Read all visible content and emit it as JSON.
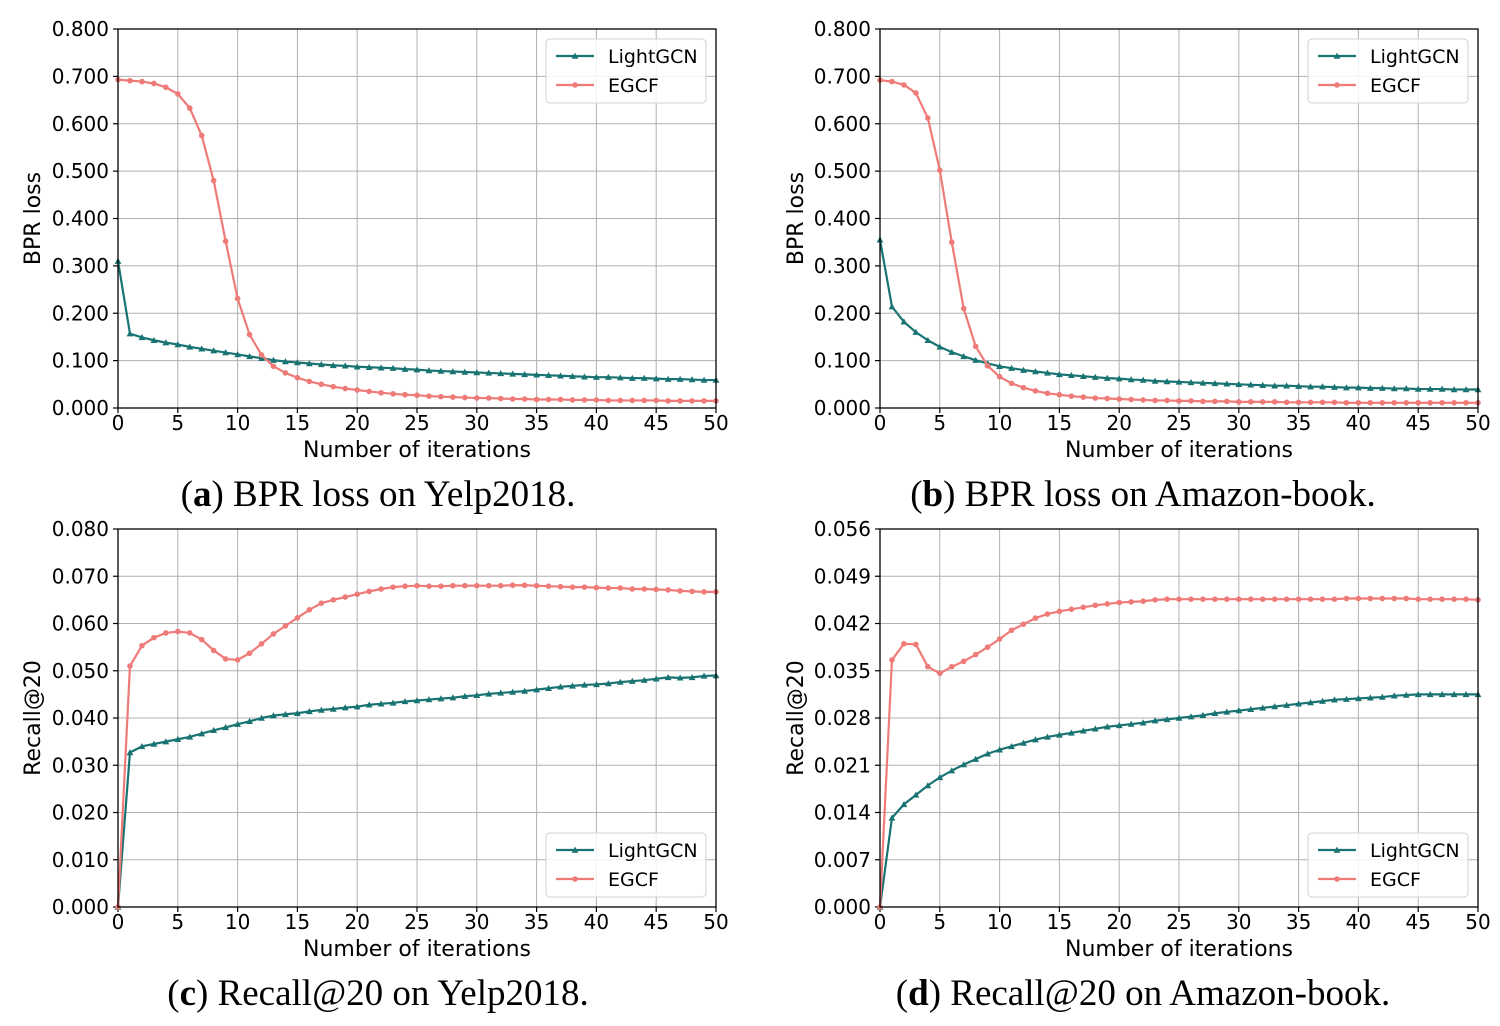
{
  "colors": {
    "lightgcn": "#1a7373",
    "egcf": "#ee7b78",
    "grid": "#b0b0b0",
    "axis": "#000000"
  },
  "chart_data": [
    {
      "type": "line",
      "caption_letter": "a",
      "caption_text": "BPR loss on Yelp2018.",
      "xlabel": "Number of iterations",
      "ylabel": "BPR loss",
      "xlim": [
        0,
        50
      ],
      "ylim": [
        0,
        0.8
      ],
      "xticks": [
        "0",
        "5",
        "10",
        "15",
        "20",
        "25",
        "30",
        "35",
        "40",
        "45",
        "50"
      ],
      "yticks": [
        "0.000",
        "0.100",
        "0.200",
        "0.300",
        "0.400",
        "0.500",
        "0.600",
        "0.700",
        "0.800"
      ],
      "legend_position": "top-right",
      "series": [
        {
          "name": "LightGCN",
          "marker": "triangle",
          "values": [
            0.31,
            0.157,
            0.149,
            0.143,
            0.138,
            0.134,
            0.129,
            0.125,
            0.121,
            0.117,
            0.113,
            0.109,
            0.105,
            0.101,
            0.098,
            0.096,
            0.094,
            0.092,
            0.09,
            0.089,
            0.087,
            0.086,
            0.085,
            0.084,
            0.082,
            0.081,
            0.079,
            0.078,
            0.077,
            0.076,
            0.075,
            0.074,
            0.073,
            0.072,
            0.071,
            0.07,
            0.069,
            0.068,
            0.067,
            0.066,
            0.065,
            0.065,
            0.064,
            0.063,
            0.063,
            0.062,
            0.061,
            0.061,
            0.06,
            0.059,
            0.059
          ]
        },
        {
          "name": "EGCF",
          "marker": "circle",
          "values": [
            0.693,
            0.691,
            0.689,
            0.685,
            0.677,
            0.663,
            0.633,
            0.575,
            0.48,
            0.352,
            0.231,
            0.155,
            0.112,
            0.088,
            0.074,
            0.064,
            0.056,
            0.05,
            0.045,
            0.041,
            0.038,
            0.035,
            0.032,
            0.03,
            0.028,
            0.027,
            0.025,
            0.024,
            0.023,
            0.022,
            0.021,
            0.021,
            0.02,
            0.019,
            0.019,
            0.018,
            0.018,
            0.018,
            0.017,
            0.017,
            0.017,
            0.016,
            0.016,
            0.016,
            0.016,
            0.016,
            0.015,
            0.015,
            0.015,
            0.015,
            0.015
          ]
        }
      ]
    },
    {
      "type": "line",
      "caption_letter": "b",
      "caption_text": "BPR loss on Amazon-book.",
      "xlabel": "Number of iterations",
      "ylabel": "BPR loss",
      "xlim": [
        0,
        50
      ],
      "ylim": [
        0,
        0.8
      ],
      "xticks": [
        "0",
        "5",
        "10",
        "15",
        "20",
        "25",
        "30",
        "35",
        "40",
        "45",
        "50"
      ],
      "yticks": [
        "0.000",
        "0.100",
        "0.200",
        "0.300",
        "0.400",
        "0.500",
        "0.600",
        "0.700",
        "0.800"
      ],
      "legend_position": "top-right",
      "series": [
        {
          "name": "LightGCN",
          "marker": "triangle",
          "values": [
            0.355,
            0.214,
            0.182,
            0.16,
            0.143,
            0.129,
            0.118,
            0.109,
            0.101,
            0.094,
            0.088,
            0.084,
            0.08,
            0.077,
            0.074,
            0.071,
            0.069,
            0.067,
            0.065,
            0.063,
            0.062,
            0.06,
            0.059,
            0.057,
            0.056,
            0.055,
            0.054,
            0.053,
            0.052,
            0.051,
            0.05,
            0.049,
            0.048,
            0.047,
            0.047,
            0.046,
            0.045,
            0.045,
            0.044,
            0.043,
            0.043,
            0.042,
            0.042,
            0.041,
            0.041,
            0.04,
            0.04,
            0.04,
            0.039,
            0.039,
            0.039
          ]
        },
        {
          "name": "EGCF",
          "marker": "circle",
          "values": [
            0.692,
            0.689,
            0.682,
            0.665,
            0.612,
            0.502,
            0.35,
            0.21,
            0.13,
            0.089,
            0.066,
            0.052,
            0.043,
            0.036,
            0.031,
            0.028,
            0.025,
            0.023,
            0.021,
            0.02,
            0.019,
            0.018,
            0.017,
            0.016,
            0.016,
            0.015,
            0.015,
            0.014,
            0.014,
            0.014,
            0.013,
            0.013,
            0.013,
            0.013,
            0.012,
            0.012,
            0.012,
            0.012,
            0.012,
            0.011,
            0.011,
            0.011,
            0.011,
            0.011,
            0.011,
            0.011,
            0.011,
            0.011,
            0.011,
            0.011,
            0.011
          ]
        }
      ]
    },
    {
      "type": "line",
      "caption_letter": "c",
      "caption_text": "Recall@20 on Yelp2018.",
      "xlabel": "Number of iterations",
      "ylabel": "Recall@20",
      "xlim": [
        0,
        50
      ],
      "ylim": [
        0,
        0.08
      ],
      "xticks": [
        "0",
        "5",
        "10",
        "15",
        "20",
        "25",
        "30",
        "35",
        "40",
        "45",
        "50"
      ],
      "yticks": [
        "0.000",
        "0.010",
        "0.020",
        "0.030",
        "0.040",
        "0.050",
        "0.060",
        "0.070",
        "0.080"
      ],
      "legend_position": "bottom-right",
      "series": [
        {
          "name": "LightGCN",
          "marker": "triangle",
          "values": [
            0.0,
            0.0327,
            0.034,
            0.0345,
            0.035,
            0.0355,
            0.036,
            0.0367,
            0.0374,
            0.038,
            0.0387,
            0.0393,
            0.04,
            0.0405,
            0.0408,
            0.041,
            0.0414,
            0.0417,
            0.0419,
            0.0422,
            0.0424,
            0.0428,
            0.043,
            0.0432,
            0.0435,
            0.0437,
            0.0439,
            0.0441,
            0.0443,
            0.0446,
            0.0448,
            0.0451,
            0.0453,
            0.0455,
            0.0457,
            0.046,
            0.0463,
            0.0466,
            0.0468,
            0.047,
            0.0471,
            0.0473,
            0.0476,
            0.0478,
            0.048,
            0.0483,
            0.0486,
            0.0485,
            0.0486,
            0.0489,
            0.049
          ]
        },
        {
          "name": "EGCF",
          "marker": "circle",
          "values": [
            0.0,
            0.051,
            0.0553,
            0.057,
            0.058,
            0.0583,
            0.058,
            0.0566,
            0.0543,
            0.0525,
            0.0523,
            0.0537,
            0.0557,
            0.0578,
            0.0595,
            0.0612,
            0.0629,
            0.0643,
            0.065,
            0.0656,
            0.0662,
            0.0668,
            0.0673,
            0.0677,
            0.0679,
            0.068,
            0.0679,
            0.0679,
            0.068,
            0.068,
            0.068,
            0.068,
            0.068,
            0.0681,
            0.0681,
            0.068,
            0.0679,
            0.0678,
            0.0677,
            0.0677,
            0.0676,
            0.0675,
            0.0675,
            0.0673,
            0.0673,
            0.0672,
            0.0671,
            0.0669,
            0.0668,
            0.0667,
            0.0667
          ]
        }
      ]
    },
    {
      "type": "line",
      "caption_letter": "d",
      "caption_text": "Recall@20 on Amazon-book.",
      "xlabel": "Number of iterations",
      "ylabel": "Recall@20",
      "xlim": [
        0,
        50
      ],
      "ylim": [
        0,
        0.056
      ],
      "xticks": [
        "0",
        "5",
        "10",
        "15",
        "20",
        "25",
        "30",
        "35",
        "40",
        "45",
        "50"
      ],
      "yticks": [
        "0.000",
        "0.007",
        "0.014",
        "0.021",
        "0.028",
        "0.035",
        "0.042",
        "0.049",
        "0.056"
      ],
      "legend_position": "bottom-right",
      "series": [
        {
          "name": "LightGCN",
          "marker": "triangle",
          "values": [
            0.0,
            0.0132,
            0.0152,
            0.0166,
            0.018,
            0.0192,
            0.0202,
            0.0211,
            0.0219,
            0.0227,
            0.0233,
            0.0238,
            0.0243,
            0.0248,
            0.0252,
            0.0255,
            0.0258,
            0.0261,
            0.0264,
            0.0267,
            0.0269,
            0.0271,
            0.0273,
            0.0276,
            0.0278,
            0.028,
            0.0282,
            0.0284,
            0.0287,
            0.0289,
            0.0291,
            0.0293,
            0.0295,
            0.0297,
            0.0299,
            0.0301,
            0.0303,
            0.0305,
            0.0307,
            0.0308,
            0.0309,
            0.031,
            0.0311,
            0.0313,
            0.0314,
            0.0315,
            0.0315,
            0.0315,
            0.0315,
            0.0315,
            0.0315
          ]
        },
        {
          "name": "EGCF",
          "marker": "circle",
          "values": [
            0.0,
            0.0366,
            0.039,
            0.0389,
            0.0356,
            0.0346,
            0.0356,
            0.0364,
            0.0374,
            0.0385,
            0.0397,
            0.041,
            0.0419,
            0.0428,
            0.0434,
            0.0438,
            0.0441,
            0.0444,
            0.0447,
            0.0449,
            0.0451,
            0.0452,
            0.0453,
            0.0455,
            0.0456,
            0.0456,
            0.0456,
            0.0456,
            0.0456,
            0.0456,
            0.0456,
            0.0456,
            0.0456,
            0.0456,
            0.0456,
            0.0456,
            0.0456,
            0.0456,
            0.0456,
            0.0457,
            0.0457,
            0.0457,
            0.0457,
            0.0457,
            0.0457,
            0.0456,
            0.0456,
            0.0456,
            0.0456,
            0.0456,
            0.0455
          ]
        }
      ]
    }
  ]
}
